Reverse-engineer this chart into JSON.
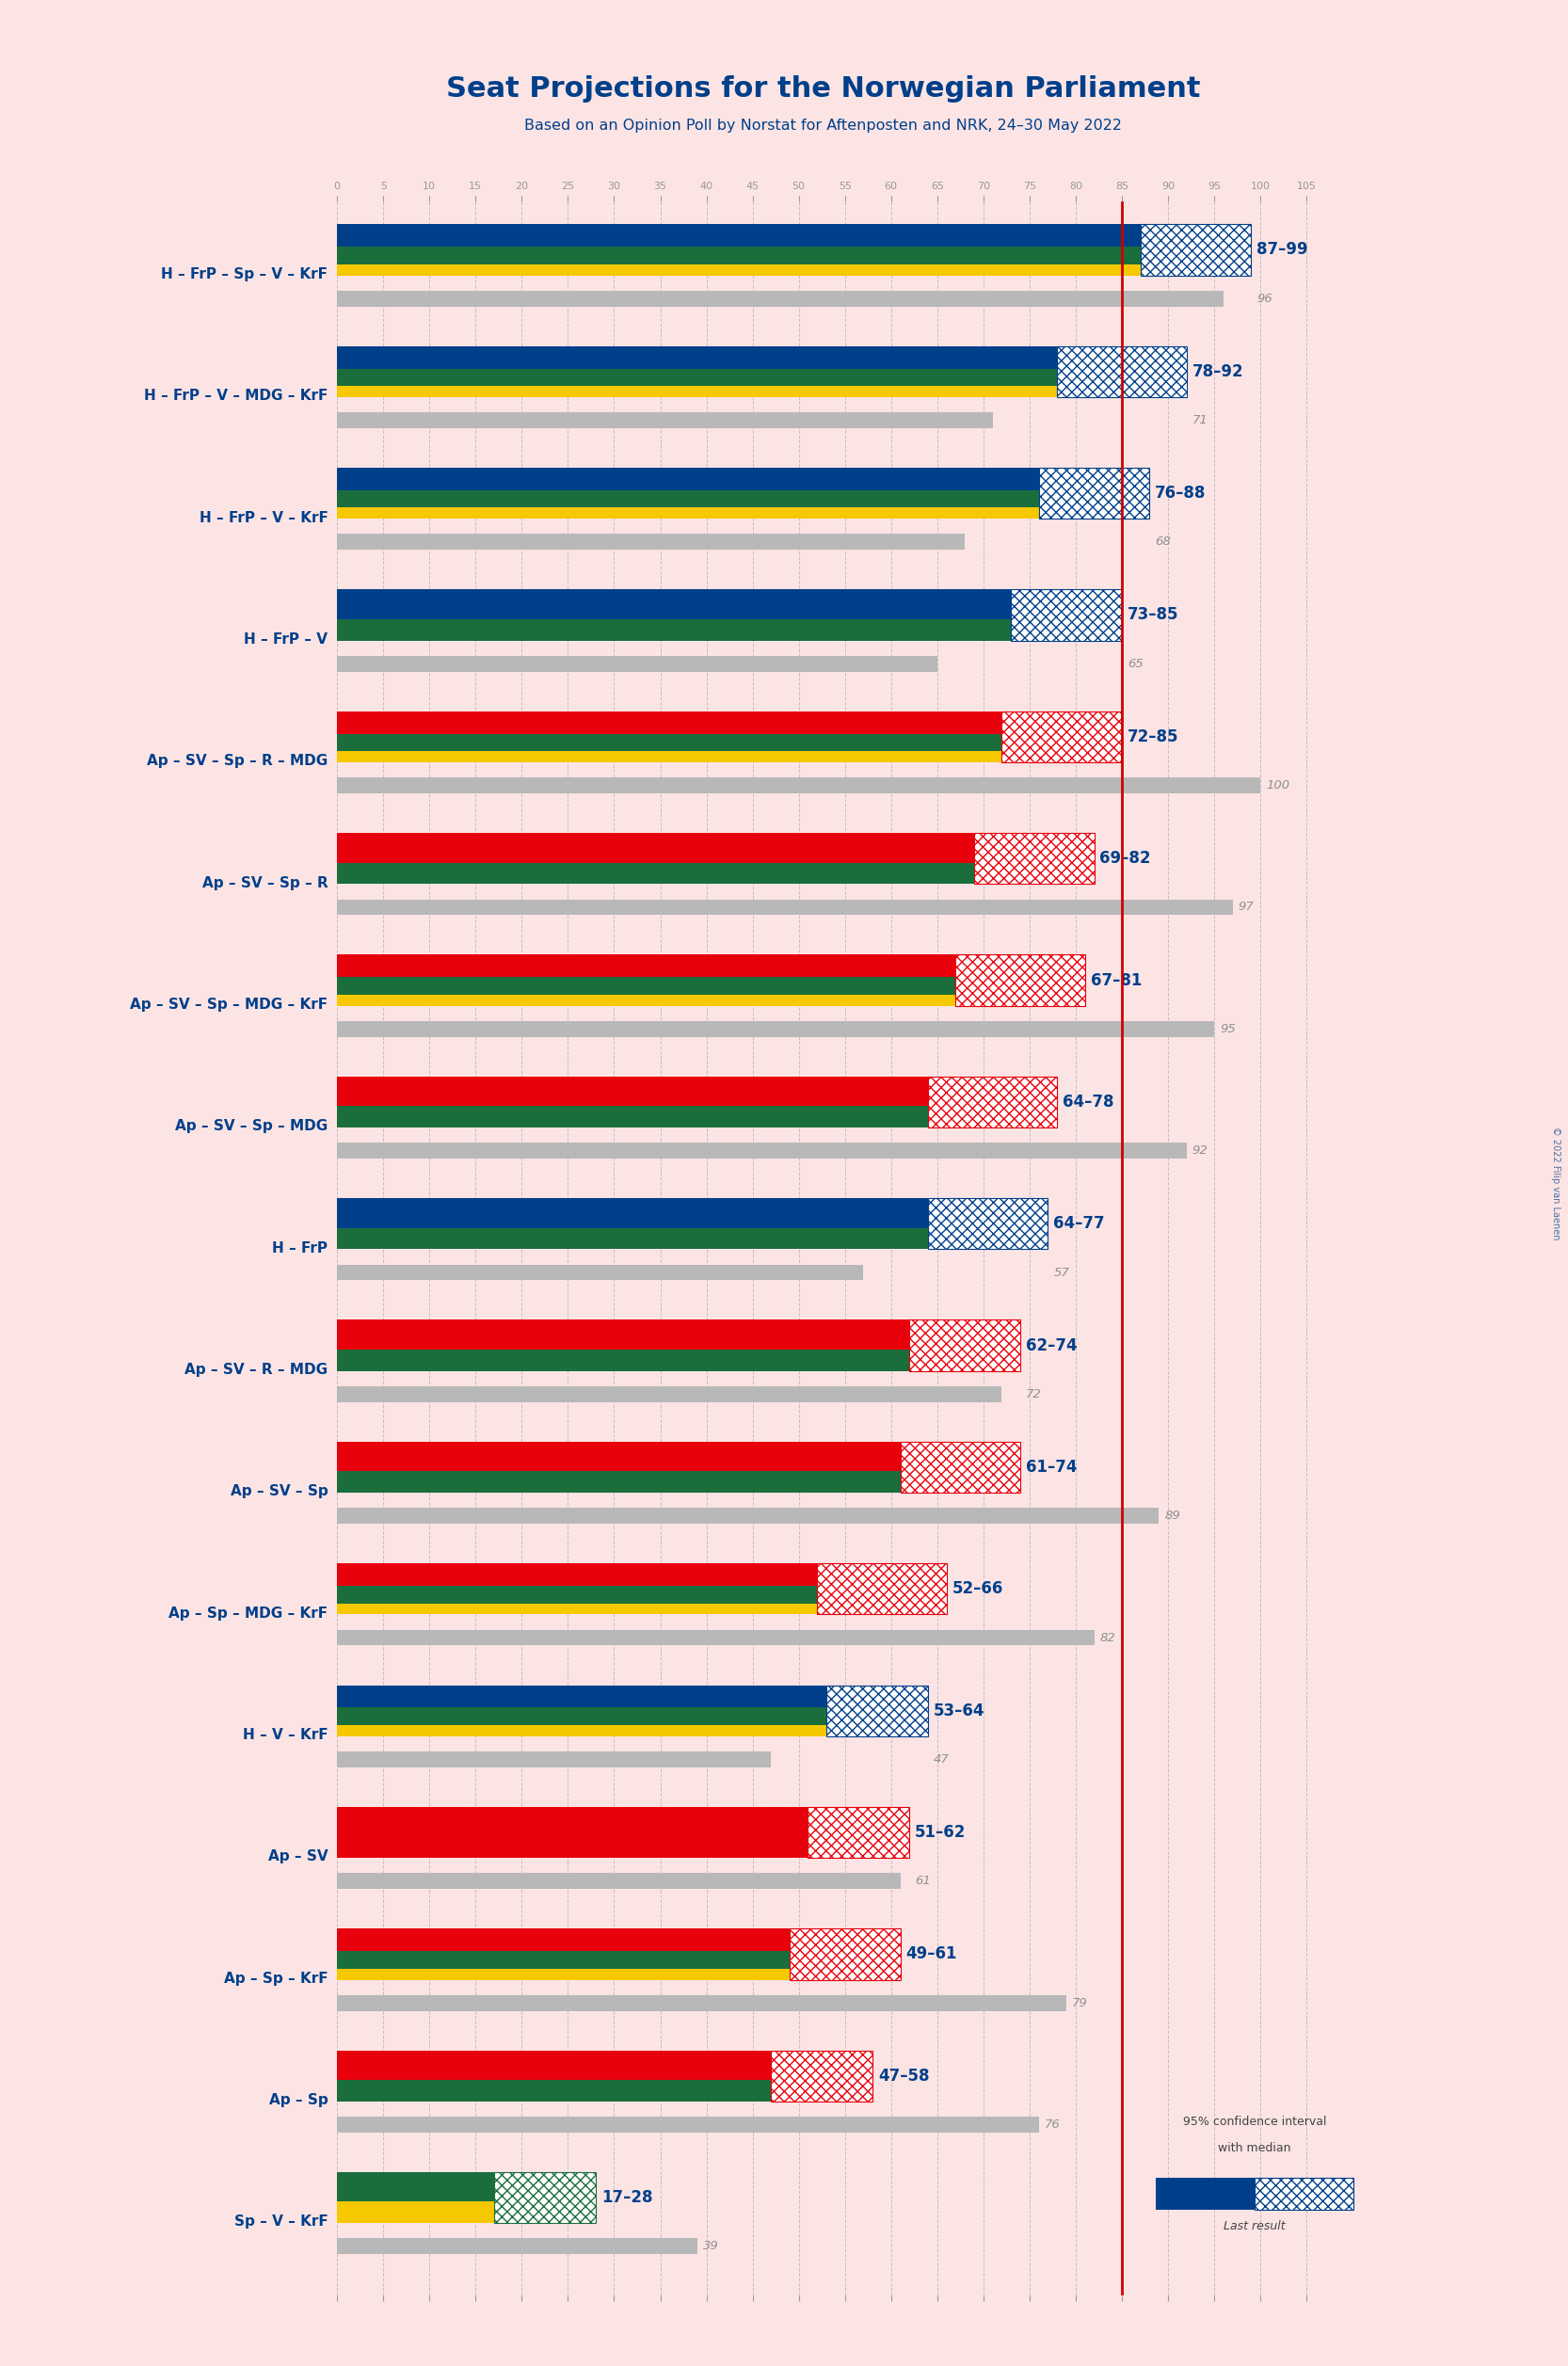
{
  "title": "Seat Projections for the Norwegian Parliament",
  "subtitle": "Based on an Opinion Poll by Norstat for Aftenposten and NRK, 24–30 May 2022",
  "background_color": "#fce4e4",
  "majority_line": 85,
  "x_max": 107,
  "coalitions": [
    {
      "label": "H – FrP – Sp – V – KrF",
      "range_low": 87,
      "range_high": 99,
      "last_result": 96,
      "bar_colors": [
        "#003f8a",
        "#1a6e3c",
        "#f5c800"
      ],
      "hatch_color": "#003f8a"
    },
    {
      "label": "H – FrP – V – MDG – KrF",
      "range_low": 78,
      "range_high": 92,
      "last_result": 71,
      "bar_colors": [
        "#003f8a",
        "#1a6e3c",
        "#f5c800"
      ],
      "hatch_color": "#003f8a"
    },
    {
      "label": "H – FrP – V – KrF",
      "range_low": 76,
      "range_high": 88,
      "last_result": 68,
      "bar_colors": [
        "#003f8a",
        "#1a6e3c",
        "#f5c800"
      ],
      "hatch_color": "#003f8a"
    },
    {
      "label": "H – FrP – V",
      "range_low": 73,
      "range_high": 85,
      "last_result": 65,
      "bar_colors": [
        "#003f8a",
        "#1a6e3c"
      ],
      "hatch_color": "#003f8a"
    },
    {
      "label": "Ap – SV – Sp – R – MDG",
      "range_low": 72,
      "range_high": 85,
      "last_result": 100,
      "bar_colors": [
        "#e8000d",
        "#1a6e3c",
        "#f5c800"
      ],
      "hatch_color": "#e8000d"
    },
    {
      "label": "Ap – SV – Sp – R",
      "range_low": 69,
      "range_high": 82,
      "last_result": 97,
      "bar_colors": [
        "#e8000d",
        "#1a6e3c"
      ],
      "hatch_color": "#e8000d"
    },
    {
      "label": "Ap – SV – Sp – MDG – KrF",
      "range_low": 67,
      "range_high": 81,
      "last_result": 95,
      "bar_colors": [
        "#e8000d",
        "#1a6e3c",
        "#f5c800"
      ],
      "hatch_color": "#e8000d"
    },
    {
      "label": "Ap – SV – Sp – MDG",
      "range_low": 64,
      "range_high": 78,
      "last_result": 92,
      "bar_colors": [
        "#e8000d",
        "#1a6e3c"
      ],
      "hatch_color": "#e8000d"
    },
    {
      "label": "H – FrP",
      "range_low": 64,
      "range_high": 77,
      "last_result": 57,
      "bar_colors": [
        "#003f8a",
        "#1a6e3c"
      ],
      "hatch_color": "#003f8a"
    },
    {
      "label": "Ap – SV – R – MDG",
      "range_low": 62,
      "range_high": 74,
      "last_result": 72,
      "bar_colors": [
        "#e8000d",
        "#1a6e3c"
      ],
      "hatch_color": "#e8000d"
    },
    {
      "label": "Ap – SV – Sp",
      "range_low": 61,
      "range_high": 74,
      "last_result": 89,
      "bar_colors": [
        "#e8000d",
        "#1a6e3c"
      ],
      "hatch_color": "#e8000d"
    },
    {
      "label": "Ap – Sp – MDG – KrF",
      "range_low": 52,
      "range_high": 66,
      "last_result": 82,
      "bar_colors": [
        "#e8000d",
        "#1a6e3c",
        "#f5c800"
      ],
      "hatch_color": "#e8000d"
    },
    {
      "label": "H – V – KrF",
      "range_low": 53,
      "range_high": 64,
      "last_result": 47,
      "bar_colors": [
        "#003f8a",
        "#1a6e3c",
        "#f5c800"
      ],
      "hatch_color": "#003f8a"
    },
    {
      "label": "Ap – SV",
      "range_low": 51,
      "range_high": 62,
      "last_result": 61,
      "bar_colors": [
        "#e8000d"
      ],
      "hatch_color": "#e8000d",
      "underline": true
    },
    {
      "label": "Ap – Sp – KrF",
      "range_low": 49,
      "range_high": 61,
      "last_result": 79,
      "bar_colors": [
        "#e8000d",
        "#1a6e3c",
        "#f5c800"
      ],
      "hatch_color": "#e8000d"
    },
    {
      "label": "Ap – Sp",
      "range_low": 47,
      "range_high": 58,
      "last_result": 76,
      "bar_colors": [
        "#e8000d",
        "#1a6e3c"
      ],
      "hatch_color": "#e8000d"
    },
    {
      "label": "Sp – V – KrF",
      "range_low": 17,
      "range_high": 28,
      "last_result": 39,
      "bar_colors": [
        "#1a6e3c",
        "#f5c800"
      ],
      "hatch_color": "#1a6e3c"
    }
  ],
  "label_color": "#003f8a",
  "gray_color": "#b8b8b8",
  "last_result_color": "#909090",
  "range_text_color": "#003f8a",
  "majority_color": "#cc0000",
  "grid_color": "#bbbbbb",
  "tick_color": "#999999"
}
